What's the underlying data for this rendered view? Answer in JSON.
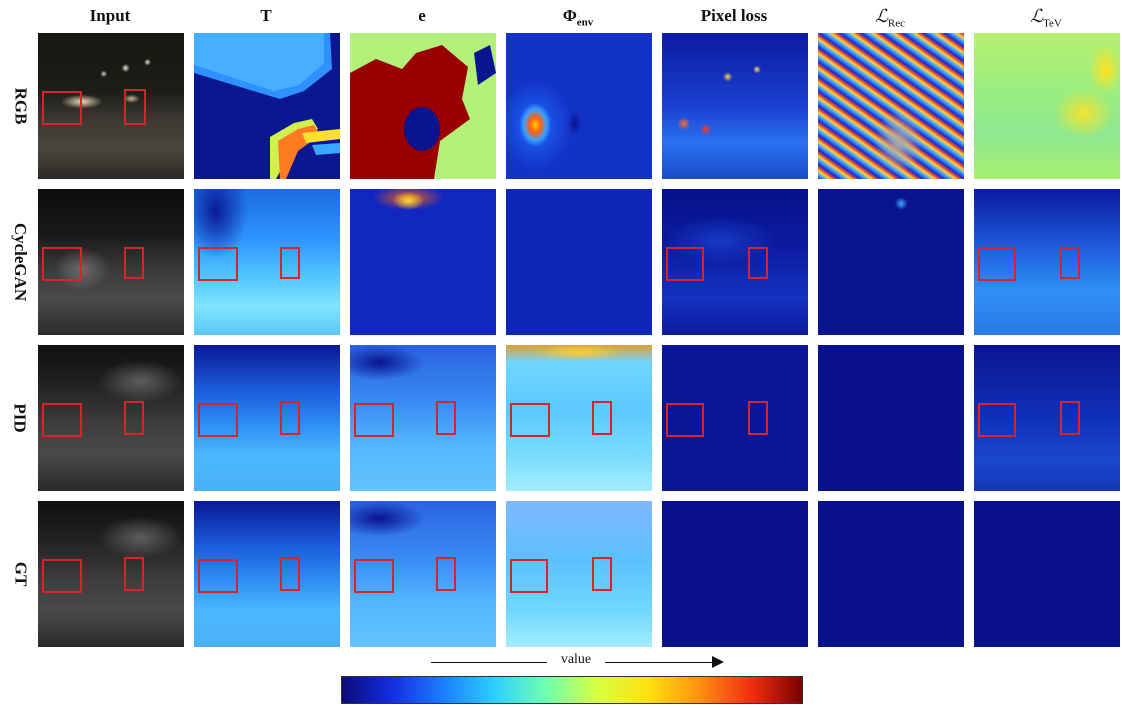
{
  "columns": [
    {
      "label": "Input"
    },
    {
      "label": "T"
    },
    {
      "label": "e"
    },
    {
      "label": "Φ",
      "sub": "env"
    },
    {
      "label": "Pixel loss"
    },
    {
      "label": "ℒ",
      "sub": "Rec"
    },
    {
      "label": "ℒ",
      "sub": "TeV"
    }
  ],
  "rows": [
    {
      "label": "RGB"
    },
    {
      "label": "CycleGAN"
    },
    {
      "label": "PID"
    },
    {
      "label": "GT"
    }
  ],
  "colorbar": {
    "label": "value",
    "colors": [
      "#0a0a7a",
      "#1430e0",
      "#1a80ff",
      "#2fd0ff",
      "#6fffb0",
      "#d8ff40",
      "#ffe010",
      "#ff9010",
      "#f03010",
      "#7a0000"
    ]
  },
  "highlight_color": "#d9232a"
}
